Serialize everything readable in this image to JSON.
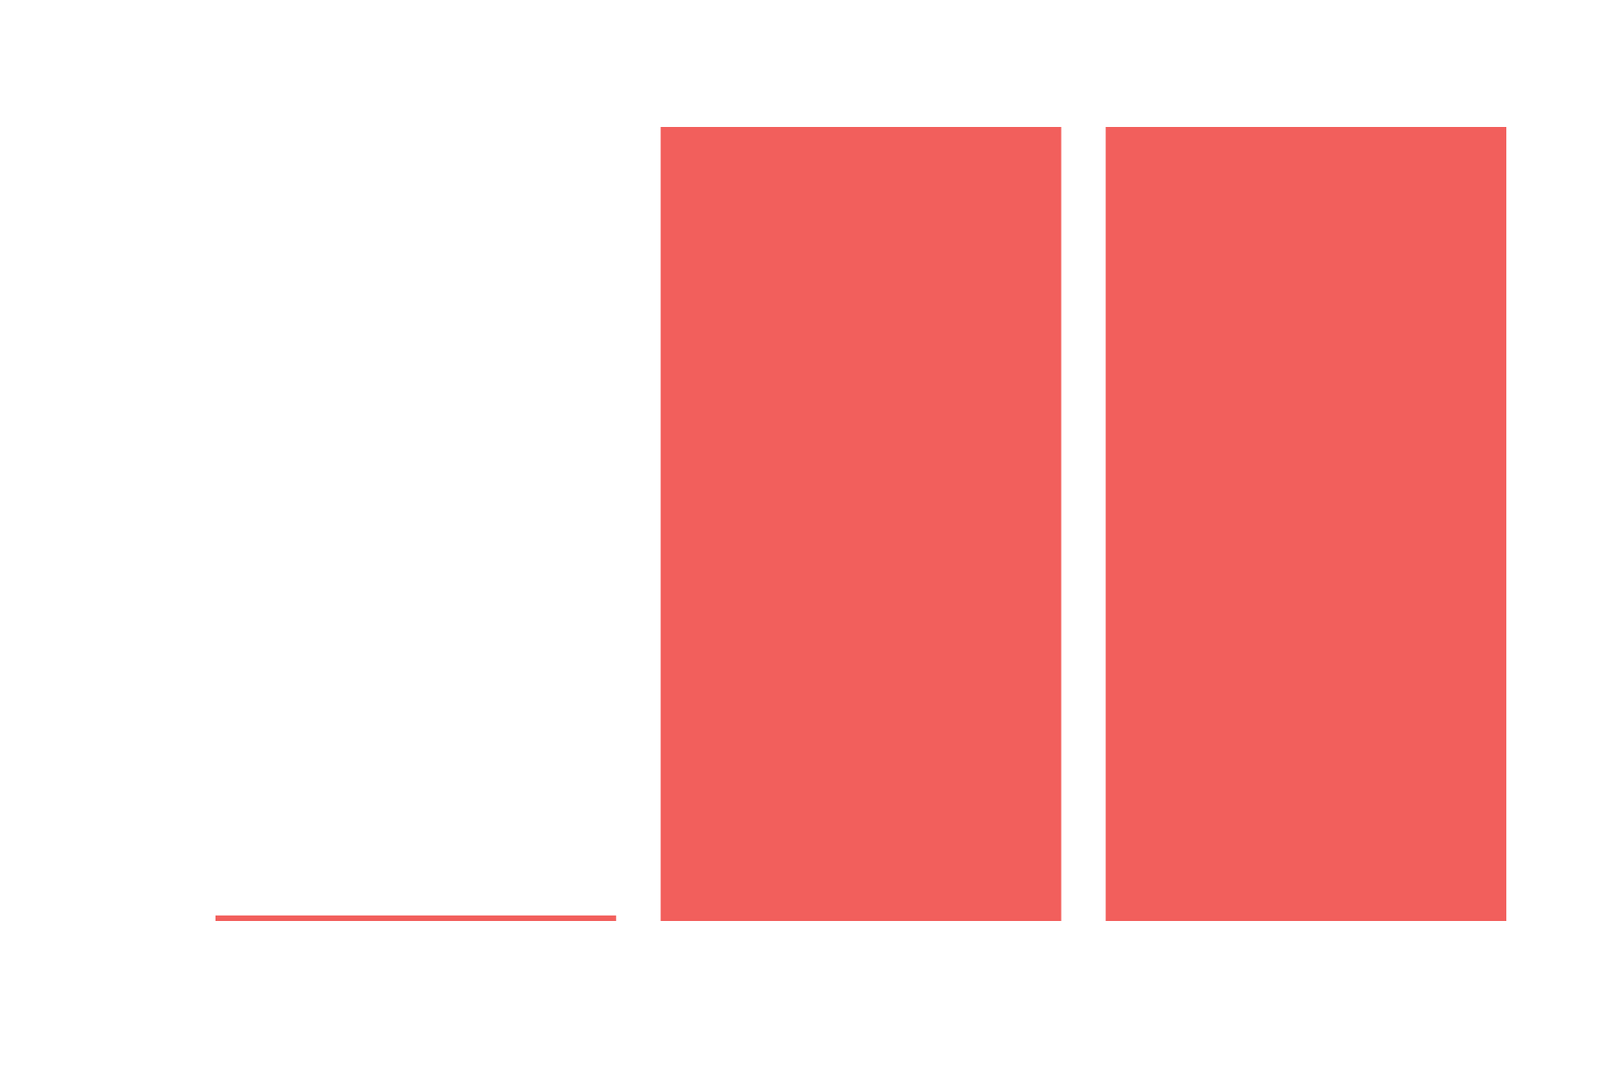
{
  "chart_data": {
    "type": "bar",
    "categories": [
      "",
      "",
      ""
    ],
    "values": [
      0.7,
      100,
      100
    ],
    "ylim": [
      0,
      100
    ],
    "title": "",
    "xlabel": "",
    "ylabel": "",
    "grid": false,
    "legend": "none",
    "bar_color": "#f25f5c",
    "background_color": "#ffffff"
  }
}
